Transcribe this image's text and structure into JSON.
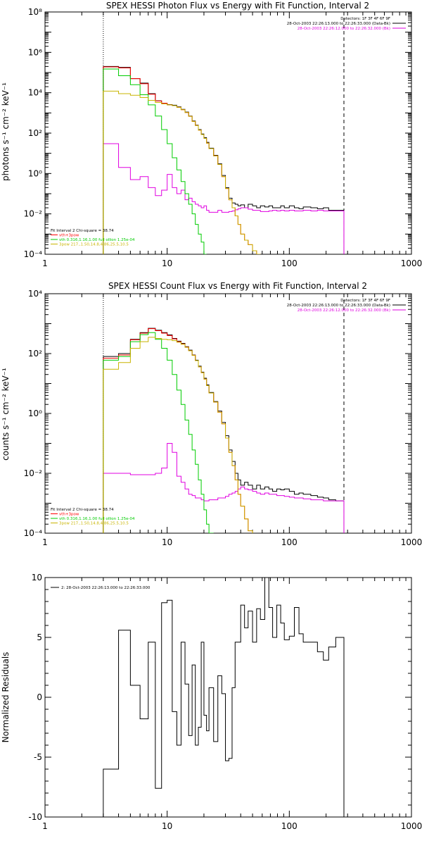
{
  "chart_data": [
    {
      "type": "line",
      "title": "SPEX HESSI Photon Flux vs Energy with Fit Function, Interval 2",
      "xlabel": "",
      "ylabel": "photons s⁻¹ cm⁻² keV⁻¹",
      "xscale": "log",
      "yscale": "log",
      "xlim": [
        1,
        1000
      ],
      "ylim": [
        0.0001,
        100000000
      ],
      "x_tick_labels": [
        "1",
        "10",
        "100",
        "1000"
      ],
      "y_tick_labels": [
        "10⁻⁴",
        "10⁻²",
        "10⁰",
        "10²",
        "10⁴",
        "10⁶",
        "10⁸"
      ],
      "legend_top_right": [
        {
          "text": "Detectors: 1F 3F 4F 6F 9F",
          "color": "#000000"
        },
        {
          "text": "28-Oct-2003 22:26:13.000 to 22:26:33.000 (Data-Bk)",
          "color": "#000000"
        },
        {
          "text": "28-Oct-2003 22:26:12.000 to 22:26:32.000 (Bk)",
          "color": "#e000e0"
        }
      ],
      "legend_bottom_left": [
        {
          "text": "Fit Interval 2   Chi-square = 38.74",
          "color": "#000000"
        },
        {
          "text": "vth+3pow",
          "color": "#ff0000"
        },
        {
          "text": "vth 0.316,1.16,1.00  full ollion 1.25e-04",
          "color": "#00cc00"
        },
        {
          "text": "3pow 217.,1.50,14.8,4.86,25.5,10.5",
          "color": "#c8b400"
        }
      ],
      "vlines": [
        {
          "x": 3,
          "style": "dotted"
        },
        {
          "x": 280,
          "style": "dashed"
        }
      ],
      "bin_edges": [
        3,
        4,
        5,
        6,
        7,
        8,
        9,
        10,
        11,
        12,
        13,
        14,
        15,
        16,
        17,
        18,
        19,
        20,
        21,
        22,
        24,
        26,
        28,
        30,
        32,
        34,
        36,
        38,
        40,
        43,
        46,
        50,
        54,
        58,
        63,
        68,
        73,
        79,
        85,
        91,
        100,
        110,
        120,
        130,
        150,
        170,
        190,
        210,
        240,
        280
      ],
      "series": [
        {
          "name": "Data-Bk",
          "color": "#000000",
          "values": [
            200000,
            180000,
            50000,
            30000,
            9000,
            4000,
            3000,
            2600,
            2400,
            2000,
            1500,
            1100,
            700,
            400,
            250,
            150,
            90,
            60,
            35,
            18,
            8,
            3,
            0.8,
            0.2,
            0.06,
            0.035,
            0.03,
            0.025,
            0.028,
            0.02,
            0.03,
            0.025,
            0.02,
            0.025,
            0.022,
            0.025,
            0.02,
            0.02,
            0.025,
            0.02,
            0.025,
            0.02,
            0.018,
            0.022,
            0.02,
            0.018,
            0.02,
            0.015,
            0.015
          ]
        },
        {
          "name": "Bk",
          "color": "#e000e0",
          "values": [
            30,
            2,
            0.5,
            0.7,
            0.2,
            0.08,
            0.15,
            0.9,
            0.2,
            0.1,
            0.15,
            0.05,
            0.06,
            0.04,
            0.03,
            0.025,
            0.02,
            0.025,
            0.015,
            0.012,
            0.012,
            0.015,
            0.012,
            0.012,
            0.013,
            0.014,
            0.016,
            0.018,
            0.02,
            0.02,
            0.017,
            0.015,
            0.015,
            0.013,
            0.013,
            0.014,
            0.015,
            0.014,
            0.015,
            0.014,
            0.015,
            0.014,
            0.014,
            0.015,
            0.014,
            0.015,
            0.014,
            0.014,
            0.014
          ]
        },
        {
          "name": "vth+3pow",
          "color": "#ff0000",
          "values": [
            190000,
            170000,
            50000,
            28000,
            8500,
            3900,
            3000,
            2500,
            2300,
            1900,
            1450,
            1050,
            680,
            380,
            240,
            140,
            85,
            55,
            32,
            17,
            7.5,
            2.8,
            0.7,
            0.18,
            0.05,
            0.02,
            0.008,
            0.003,
            0.001,
            0.0005,
            0.0003,
            0.00015,
            0.0001
          ]
        },
        {
          "name": "vth",
          "color": "#00cc00",
          "values": [
            150000,
            70000,
            25000,
            8000,
            2500,
            700,
            150,
            30,
            6,
            1.5,
            0.4,
            0.1,
            0.03,
            0.01,
            0.003,
            0.001,
            0.0004,
            0.0001
          ]
        },
        {
          "name": "3pow",
          "color": "#c8b400",
          "values": [
            12000,
            9000,
            7500,
            5800,
            4200,
            3300,
            2800,
            2500,
            2300,
            1900,
            1450,
            1050,
            680,
            380,
            240,
            140,
            85,
            55,
            32,
            17,
            7.5,
            2.8,
            0.7,
            0.18,
            0.05,
            0.02,
            0.008,
            0.003,
            0.001,
            0.0005,
            0.0003,
            0.00015,
            0.0001
          ]
        }
      ]
    },
    {
      "type": "line",
      "title": "SPEX HESSI Count Flux vs Energy with Fit Function, Interval 2",
      "xlabel": "",
      "ylabel": "counts s⁻¹ cm⁻² keV⁻¹",
      "xscale": "log",
      "yscale": "log",
      "xlim": [
        1,
        1000
      ],
      "ylim": [
        0.0001,
        10000
      ],
      "x_tick_labels": [
        "1",
        "10",
        "100",
        "1000"
      ],
      "y_tick_labels": [
        "10⁻⁴",
        "10⁻²",
        "10⁰",
        "10²",
        "10⁴"
      ],
      "legend_top_right": [
        {
          "text": "Detectors: 1F 3F 4F 6F 9F",
          "color": "#000000"
        },
        {
          "text": "28-Oct-2003 22:26:13.000 to 22:26:33.000 (Data-Bk)",
          "color": "#000000"
        },
        {
          "text": "28-Oct-2003 22:26:12.000 to 22:26:32.000 (Bk)",
          "color": "#e000e0"
        }
      ],
      "legend_bottom_left": [
        {
          "text": "Fit Interval 2   Chi-square = 38.74",
          "color": "#000000"
        },
        {
          "text": "vth+3pow",
          "color": "#ff0000"
        },
        {
          "text": "vth 0.316,1.16,1.00  full ollion 1.25e-04",
          "color": "#00cc00"
        },
        {
          "text": "3pow 217.,1.50,14.8,4.86,25.5,10.5",
          "color": "#c8b400"
        }
      ],
      "vlines": [
        {
          "x": 3,
          "style": "dotted"
        },
        {
          "x": 280,
          "style": "dashed"
        }
      ],
      "bin_edges": [
        3,
        4,
        5,
        6,
        7,
        8,
        9,
        10,
        11,
        12,
        13,
        14,
        15,
        16,
        17,
        18,
        19,
        20,
        21,
        22,
        24,
        26,
        28,
        30,
        32,
        34,
        36,
        38,
        40,
        43,
        46,
        50,
        54,
        58,
        63,
        68,
        73,
        79,
        85,
        91,
        100,
        110,
        120,
        130,
        150,
        170,
        190,
        210,
        240,
        280
      ],
      "series": [
        {
          "name": "Data-Bk",
          "color": "#000000",
          "values": [
            80,
            100,
            300,
            500,
            700,
            600,
            500,
            420,
            320,
            260,
            220,
            170,
            130,
            90,
            60,
            38,
            24,
            15,
            9,
            5,
            2.5,
            1.2,
            0.5,
            0.18,
            0.06,
            0.025,
            0.01,
            0.006,
            0.004,
            0.005,
            0.004,
            0.003,
            0.004,
            0.003,
            0.0035,
            0.003,
            0.0025,
            0.003,
            0.0028,
            0.003,
            0.0025,
            0.002,
            0.0022,
            0.002,
            0.0018,
            0.0016,
            0.0015,
            0.0013,
            0.0012
          ]
        },
        {
          "name": "Bk",
          "color": "#e000e0",
          "values": [
            0.01,
            0.01,
            0.009,
            0.009,
            0.009,
            0.01,
            0.015,
            0.1,
            0.05,
            0.008,
            0.005,
            0.003,
            0.002,
            0.0018,
            0.0015,
            0.0015,
            0.0013,
            0.0012,
            0.0012,
            0.0013,
            0.0013,
            0.0015,
            0.0015,
            0.0017,
            0.002,
            0.0022,
            0.0025,
            0.003,
            0.0035,
            0.003,
            0.0028,
            0.0025,
            0.0022,
            0.002,
            0.0022,
            0.002,
            0.002,
            0.0018,
            0.0018,
            0.0017,
            0.0016,
            0.0015,
            0.0015,
            0.0014,
            0.0013,
            0.0013,
            0.0012,
            0.0012,
            0.0012
          ]
        },
        {
          "name": "vth+3pow",
          "color": "#ff0000",
          "values": [
            70,
            90,
            290,
            480,
            680,
            580,
            480,
            400,
            310,
            250,
            210,
            165,
            125,
            88,
            58,
            36,
            23,
            14,
            8.5,
            4.8,
            2.4,
            1.1,
            0.45,
            0.15,
            0.05,
            0.018,
            0.006,
            0.002,
            0.0008,
            0.0003,
            0.00012
          ]
        },
        {
          "name": "vth",
          "color": "#00cc00",
          "values": [
            60,
            80,
            250,
            430,
            500,
            300,
            150,
            60,
            20,
            6,
            2,
            0.6,
            0.2,
            0.06,
            0.02,
            0.006,
            0.002,
            0.0006,
            0.0002,
            0.0001
          ]
        },
        {
          "name": "3pow",
          "color": "#c8b400",
          "values": [
            30,
            50,
            150,
            250,
            350,
            320,
            300,
            290,
            270,
            240,
            205,
            162,
            124,
            87,
            58,
            36,
            23,
            14,
            8.5,
            4.8,
            2.4,
            1.1,
            0.45,
            0.15,
            0.05,
            0.018,
            0.006,
            0.002,
            0.0008,
            0.0003,
            0.00012
          ]
        }
      ]
    },
    {
      "type": "line",
      "title": "",
      "xlabel": "",
      "ylabel": "Normalized Residuals",
      "xscale": "log",
      "yscale": "linear",
      "xlim": [
        1,
        1000
      ],
      "ylim": [
        -10,
        10
      ],
      "x_tick_labels": [
        "1",
        "10",
        "100",
        "1000"
      ],
      "y_tick_labels": [
        "-10",
        "-5",
        "0",
        "5",
        "10"
      ],
      "legend_top_left": [
        {
          "text": "2: 28-Oct-2003 22:26:13.000 to 22:26:33.000",
          "color": "#000000"
        }
      ],
      "bin_edges": [
        3,
        4,
        5,
        6,
        7,
        8,
        9,
        10,
        11,
        12,
        13,
        14,
        15,
        16,
        17,
        18,
        19,
        20,
        21,
        22,
        24,
        26,
        28,
        30,
        32,
        34,
        36,
        38,
        40,
        43,
        46,
        50,
        54,
        58,
        63,
        68,
        73,
        79,
        85,
        91,
        100,
        110,
        120,
        130,
        150,
        170,
        190,
        210,
        240,
        280
      ],
      "series": [
        {
          "name": "Residuals",
          "color": "#000000",
          "values": [
            -6,
            5.6,
            1,
            -1.8,
            4.6,
            -7.6,
            7.9,
            8.1,
            -1.2,
            -4,
            4.6,
            1.1,
            -3.2,
            2.7,
            -4,
            -2.5,
            4.6,
            -1.5,
            -2.8,
            0.8,
            -3.7,
            1.8,
            0.3,
            -5.3,
            -5.1,
            0.8,
            4.6,
            4.6,
            7.7,
            5.8,
            7.2,
            4.6,
            7.4,
            6.5,
            10.5,
            7.5,
            5,
            7.7,
            6.2,
            4.8,
            5.1,
            7.5,
            5.3,
            4.6,
            4.6,
            3.8,
            3.1,
            4.2,
            5
          ]
        }
      ]
    }
  ]
}
